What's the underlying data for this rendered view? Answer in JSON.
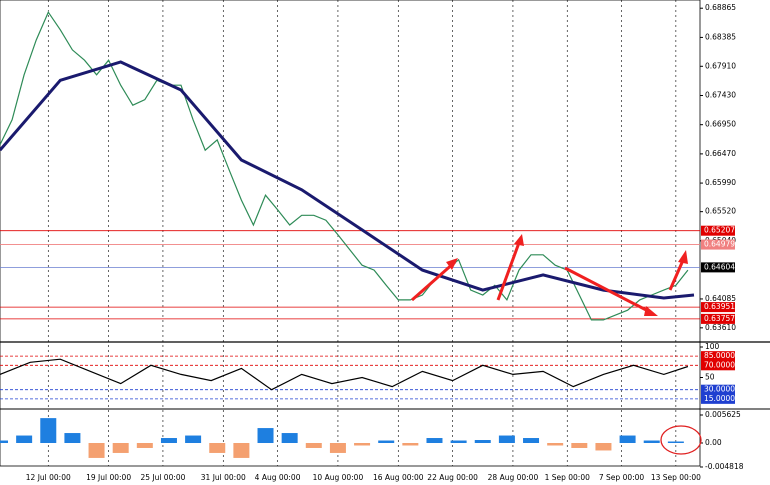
{
  "chart_data": [
    {
      "type": "line",
      "xlim": [
        0,
        116
      ],
      "xticks": [
        {
          "value": 8,
          "label": "12 Jul 00:00"
        },
        {
          "value": 18,
          "label": "19 Jul 00:00"
        },
        {
          "value": 27,
          "label": "25 Jul 00:00"
        },
        {
          "value": 37,
          "label": "31 Jul 00:00"
        },
        {
          "value": 46,
          "label": "4 Aug 00:00"
        },
        {
          "value": 56,
          "label": "10 Aug 00:00"
        },
        {
          "value": 66,
          "label": "16 Aug 00:00"
        },
        {
          "value": 75,
          "label": "22 Aug 00:00"
        },
        {
          "value": 85,
          "label": "28 Aug 00:00"
        },
        {
          "value": 94,
          "label": "1 Sep 00:00"
        },
        {
          "value": 103,
          "label": "7 Sep 00:00"
        },
        {
          "value": 112,
          "label": "13 Sep 00:00"
        }
      ],
      "ylim": [
        0.6341,
        0.69
      ],
      "yticks": [
        0.68865,
        0.68385,
        {
          "value": 0.6791,
          "label": "0.67910"
        },
        {
          "value": 0.6743,
          "label": "0.67430"
        },
        {
          "value": 0.6695,
          "label": "0.66950"
        },
        {
          "value": 0.6647,
          "label": "0.66470"
        },
        {
          "value": 0.6599,
          "label": "0.65990"
        },
        {
          "value": 0.6552,
          "label": "0.65520"
        },
        {
          "value": 0.6504,
          "label": "0.65040"
        },
        0.64085,
        {
          "value": 0.6361,
          "label": "0.63610"
        }
      ],
      "levels": [
        {
          "value": 0.65207,
          "color": "#e00000"
        },
        {
          "value": 0.64979,
          "color": "#f08080"
        },
        {
          "value": 0.64604,
          "color": "#000000"
        },
        {
          "value": 0.63951,
          "color": "#e00000"
        },
        {
          "value": 0.63757,
          "color": "#e00000"
        }
      ],
      "series": [
        {
          "color": "#2e8b57",
          "x": [
            0,
            2,
            4,
            6,
            8,
            10,
            12,
            14,
            16,
            18,
            20,
            22,
            24,
            26,
            28,
            30,
            32,
            34,
            36,
            38,
            40,
            42,
            44,
            46,
            48,
            50,
            52,
            54,
            56,
            58,
            60,
            62,
            64,
            66,
            68,
            70,
            72,
            74,
            76,
            78,
            80,
            82,
            84,
            86,
            88,
            90,
            92,
            94,
            96,
            98,
            100,
            102,
            104,
            106,
            108,
            110,
            112,
            114
          ],
          "values": [
            0.6662,
            0.6703,
            0.6777,
            0.6834,
            0.688,
            0.6851,
            0.6818,
            0.6801,
            0.6777,
            0.6801,
            0.676,
            0.6727,
            0.6736,
            0.6768,
            0.676,
            0.676,
            0.6703,
            0.6653,
            0.667,
            0.662,
            0.6571,
            0.653,
            0.6579,
            0.6555,
            0.653,
            0.6546,
            0.6546,
            0.6538,
            0.6514,
            0.6489,
            0.6464,
            0.6456,
            0.6431,
            0.6407,
            0.6407,
            0.6415,
            0.644,
            0.6456,
            0.6473,
            0.6423,
            0.6415,
            0.6431,
            0.6407,
            0.6456,
            0.6481,
            0.6481,
            0.6464,
            0.6456,
            0.6415,
            0.6374,
            0.6374,
            0.6382,
            0.639,
            0.6407,
            0.6415,
            0.6423,
            0.6431,
            0.6456
          ]
        },
        {
          "color": "#1a1a6e",
          "x": [
            0,
            10,
            20,
            30,
            40,
            50,
            60,
            70,
            80,
            90,
            100,
            110,
            115
          ],
          "values": [
            0.6653,
            0.6768,
            0.6798,
            0.6752,
            0.6637,
            0.6588,
            0.6522,
            0.6456,
            0.6423,
            0.6448,
            0.6423,
            0.641,
            0.6415
          ]
        }
      ]
    },
    {
      "type": "line",
      "xlim": [
        0,
        116
      ],
      "ylim": [
        0,
        100
      ],
      "yticks": [
        100,
        50
      ],
      "levels": [
        {
          "value": 85,
          "label": "85.0000",
          "color": "#e00000"
        },
        {
          "value": 70,
          "label": "70.0000",
          "color": "#e00000"
        },
        {
          "value": 30,
          "label": "30.0000",
          "color": "#1f3fd0"
        },
        {
          "value": 15,
          "label": "15.0000",
          "color": "#1f3fd0"
        }
      ],
      "series": [
        {
          "color": "#000000",
          "x": [
            0,
            5,
            10,
            15,
            20,
            25,
            30,
            35,
            40,
            45,
            50,
            55,
            60,
            65,
            70,
            75,
            80,
            85,
            90,
            95,
            100,
            105,
            110,
            114
          ],
          "values": [
            55,
            75,
            80,
            60,
            40,
            70,
            55,
            45,
            65,
            30,
            55,
            40,
            50,
            35,
            60,
            45,
            70,
            55,
            60,
            35,
            55,
            70,
            55,
            68
          ]
        }
      ]
    },
    {
      "type": "bar",
      "xlim": [
        0,
        116
      ],
      "ylim": [
        -0.00462,
        0.00663
      ],
      "yticks": [
        0.005625,
        {
          "value": 0,
          "label": "0.00"
        },
        -0.004818
      ],
      "positive_color": "#1e7fe0",
      "negative_color": "#f4a070",
      "x": [
        0,
        4,
        8,
        12,
        16,
        20,
        24,
        28,
        32,
        36,
        40,
        44,
        48,
        52,
        56,
        60,
        64,
        68,
        72,
        76,
        80,
        84,
        88,
        92,
        96,
        100,
        104,
        108,
        112
      ],
      "values": [
        0.0005,
        0.0015,
        0.005,
        0.002,
        -0.003,
        -0.002,
        -0.001,
        0.001,
        0.0015,
        -0.002,
        -0.003,
        0.003,
        0.002,
        -0.001,
        -0.002,
        -0.0005,
        0.0005,
        -0.0005,
        0.001,
        0.0005,
        0.0006,
        0.0015,
        0.001,
        -0.0005,
        -0.001,
        -0.0015,
        0.0015,
        0.0005,
        0.0003
      ]
    }
  ]
}
